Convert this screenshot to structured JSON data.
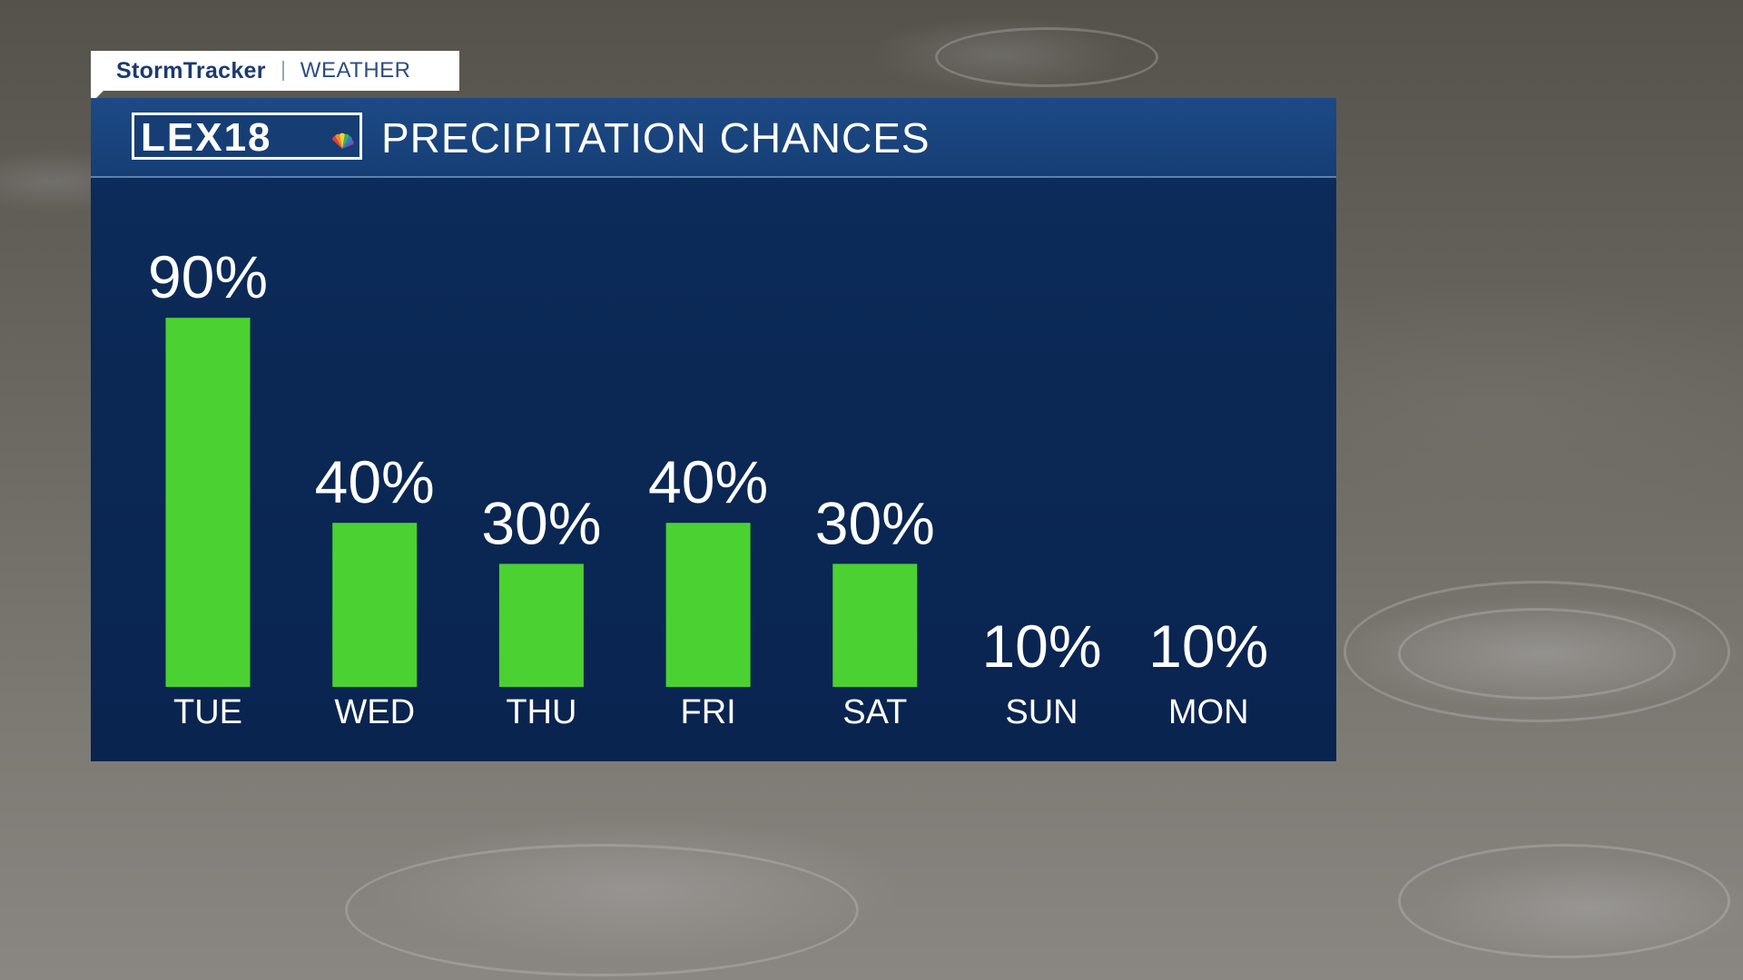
{
  "header": {
    "brand": "StormTracker",
    "section": "WEATHER"
  },
  "panel": {
    "logo_text": "LEX18",
    "title": "PRECIPITATION CHANCES"
  },
  "colors": {
    "bar": "#4bd131",
    "panel": "#0b2855",
    "header": "#1d4a86",
    "text": "#ffffff"
  },
  "chart_data": {
    "type": "bar",
    "title": "PRECIPITATION CHANCES",
    "categories": [
      "TUE",
      "WED",
      "THU",
      "FRI",
      "SAT",
      "SUN",
      "MON"
    ],
    "values": [
      90,
      40,
      30,
      40,
      30,
      10,
      10
    ],
    "value_labels": [
      "90%",
      "40%",
      "30%",
      "40%",
      "30%",
      "10%",
      "10%"
    ],
    "bars_shown": [
      true,
      true,
      true,
      true,
      true,
      false,
      false
    ],
    "xlabel": "",
    "ylabel": "",
    "ylim": [
      0,
      100
    ],
    "grid": false,
    "legend": "none"
  }
}
